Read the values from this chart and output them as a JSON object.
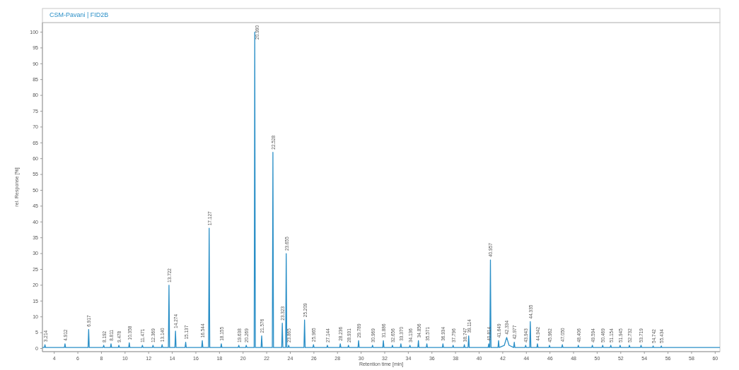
{
  "chart_data": {
    "type": "line",
    "title": "CSM-Pavani | FID2B",
    "xlabel": "Retention time [min]",
    "ylabel": "rel. Response [%]",
    "xlim": [
      3,
      60.4
    ],
    "xticks": [
      4,
      6,
      8,
      10,
      12,
      14,
      16,
      18,
      20,
      22,
      24,
      26,
      28,
      30,
      32,
      34,
      36,
      38,
      40,
      42,
      44,
      46,
      48,
      50,
      52,
      54,
      56,
      58,
      60
    ],
    "ylim": [
      -1,
      103
    ],
    "yticks": [
      0,
      5,
      10,
      15,
      20,
      25,
      30,
      35,
      40,
      45,
      50,
      55,
      60,
      65,
      70,
      75,
      80,
      85,
      90,
      95,
      100
    ],
    "series": [
      {
        "color": "#2a8fc7",
        "x": [
          3.0,
          3.164,
          3.214,
          3.264,
          4.862,
          4.912,
          4.962,
          6.867,
          6.917,
          6.967,
          8.142,
          8.192,
          8.242,
          8.761,
          8.811,
          8.861,
          9.428,
          9.478,
          9.528,
          10.308,
          10.358,
          10.408,
          11.421,
          11.471,
          11.521,
          12.319,
          12.369,
          12.419,
          13.09,
          13.14,
          13.19,
          13.672,
          13.722,
          13.772,
          14.224,
          14.274,
          14.324,
          15.087,
          15.137,
          15.187,
          16.494,
          16.544,
          16.594,
          17.077,
          17.127,
          17.177,
          18.105,
          18.155,
          18.205,
          19.588,
          19.638,
          19.688,
          20.219,
          20.269,
          20.319,
          20.94,
          20.99,
          21.04,
          21.526,
          21.576,
          21.626,
          22.478,
          22.528,
          22.578,
          23.273,
          23.323,
          23.373,
          23.605,
          23.655,
          23.705,
          23.815,
          23.865,
          23.915,
          25.159,
          25.209,
          25.259,
          25.915,
          25.965,
          26.015,
          27.094,
          27.144,
          27.194,
          28.186,
          28.236,
          28.286,
          28.881,
          28.931,
          28.981,
          29.739,
          29.789,
          29.839,
          30.919,
          30.969,
          31.019,
          31.836,
          31.886,
          31.936,
          32.606,
          32.656,
          32.706,
          33.32,
          33.37,
          33.42,
          34.086,
          34.136,
          34.186,
          34.806,
          34.856,
          34.906,
          35.521,
          35.571,
          35.621,
          36.884,
          36.934,
          36.984,
          37.746,
          37.796,
          37.846,
          38.697,
          38.747,
          38.797,
          39.064,
          39.114,
          39.164,
          40.764,
          40.814,
          40.864,
          40.907,
          40.957,
          41.007,
          41.599,
          41.649,
          41.699,
          42.134,
          42.334,
          42.534,
          42.927,
          42.977,
          43.027,
          43.893,
          43.943,
          43.993,
          44.285,
          44.335,
          44.385,
          44.892,
          44.942,
          44.992,
          45.912,
          45.962,
          46.012,
          47.0,
          47.05,
          47.1,
          48.356,
          48.406,
          48.456,
          49.544,
          49.594,
          49.644,
          50.419,
          50.469,
          50.519,
          51.104,
          51.154,
          51.204,
          51.895,
          51.945,
          51.995,
          52.682,
          52.732,
          52.782,
          53.669,
          53.719,
          53.769,
          54.692,
          54.742,
          54.792,
          55.384,
          55.434,
          55.484,
          60.4
        ],
        "values": [
          0.3,
          0.3,
          1.2,
          0.3,
          0.3,
          1.5,
          0.3,
          0.3,
          6,
          0.3,
          0.3,
          1,
          0.3,
          0.3,
          1.5,
          0.3,
          0.3,
          1,
          0.3,
          0.3,
          1.8,
          0.3,
          0.3,
          1,
          0.3,
          0.3,
          1,
          0.3,
          0.3,
          1.2,
          0.3,
          0.3,
          20,
          0.3,
          0.3,
          5.5,
          0.3,
          0.3,
          2,
          0.3,
          0.3,
          2.5,
          0.3,
          0.3,
          38,
          0.3,
          0.3,
          1.5,
          0.3,
          0.3,
          1,
          0.3,
          0.3,
          1,
          0.3,
          0.3,
          100,
          0.3,
          0.3,
          4,
          0.3,
          0.3,
          62,
          0.3,
          0.3,
          8,
          0.3,
          0.3,
          30,
          0.3,
          0.3,
          1,
          0.3,
          0.3,
          9,
          0.3,
          0.3,
          1.2,
          0.3,
          0.3,
          1,
          0.3,
          0.3,
          1.5,
          0.3,
          0.3,
          1,
          0.3,
          0.3,
          2.5,
          0.3,
          0.3,
          1,
          0.3,
          0.3,
          2.5,
          0.3,
          0.3,
          1,
          0.3,
          0.3,
          1.5,
          0.3,
          0.3,
          1,
          0.3,
          0.3,
          2.5,
          0.3,
          0.3,
          1.5,
          0.3,
          0.3,
          1.5,
          0.3,
          0.3,
          1,
          0.3,
          0.3,
          1.2,
          0.3,
          0.3,
          4,
          0.3,
          0.3,
          1.5,
          0.3,
          0.3,
          28,
          0.3,
          0.3,
          2.5,
          0.3,
          1,
          3.5,
          1,
          0.3,
          2,
          0.3,
          0.3,
          1,
          0.3,
          0.3,
          8.5,
          0.3,
          0.3,
          1.5,
          0.3,
          0.3,
          1,
          0.3,
          0.3,
          1.2,
          0.3,
          0.3,
          1,
          0.3,
          0.3,
          1,
          0.3,
          0.3,
          1,
          0.3,
          0.3,
          1,
          0.3,
          0.3,
          1,
          0.3,
          0.3,
          1,
          0.3,
          0.3,
          1,
          0.3,
          0.3,
          0.8,
          0.3,
          0.3,
          0.8,
          0.3,
          0.3
        ]
      }
    ],
    "annotations": [
      {
        "text": "3.214",
        "x": 3.214,
        "y": 1.2
      },
      {
        "text": "4.912",
        "x": 4.912,
        "y": 1.5
      },
      {
        "text": "6.917",
        "x": 6.917,
        "y": 6
      },
      {
        "text": "8.192",
        "x": 8.192,
        "y": 1
      },
      {
        "text": "8.811",
        "x": 8.811,
        "y": 1.5
      },
      {
        "text": "9.478",
        "x": 9.478,
        "y": 1
      },
      {
        "text": "10.358",
        "x": 10.358,
        "y": 1.8
      },
      {
        "text": "11.471",
        "x": 11.471,
        "y": 1
      },
      {
        "text": "12.369",
        "x": 12.369,
        "y": 1
      },
      {
        "text": "13.140",
        "x": 13.14,
        "y": 1.2
      },
      {
        "text": "13.722",
        "x": 13.722,
        "y": 20
      },
      {
        "text": "14.274",
        "x": 14.274,
        "y": 5.5
      },
      {
        "text": "15.137",
        "x": 15.137,
        "y": 2
      },
      {
        "text": "16.544",
        "x": 16.544,
        "y": 2.5
      },
      {
        "text": "17.127",
        "x": 17.127,
        "y": 38
      },
      {
        "text": "18.155",
        "x": 18.155,
        "y": 1.5
      },
      {
        "text": "19.638",
        "x": 19.638,
        "y": 1
      },
      {
        "text": "20.269",
        "x": 20.269,
        "y": 1
      },
      {
        "text": "20.990",
        "x": 20.99,
        "y": 100
      },
      {
        "text": "21.576",
        "x": 21.576,
        "y": 4
      },
      {
        "text": "22.528",
        "x": 22.528,
        "y": 62
      },
      {
        "text": "23.323",
        "x": 23.323,
        "y": 8
      },
      {
        "text": "23.655",
        "x": 23.655,
        "y": 30
      },
      {
        "text": "23.865",
        "x": 23.865,
        "y": 1
      },
      {
        "text": "25.209",
        "x": 25.209,
        "y": 9
      },
      {
        "text": "25.965",
        "x": 25.965,
        "y": 1.2
      },
      {
        "text": "27.144",
        "x": 27.144,
        "y": 1
      },
      {
        "text": "28.236",
        "x": 28.236,
        "y": 1.5
      },
      {
        "text": "28.931",
        "x": 28.931,
        "y": 1
      },
      {
        "text": "29.789",
        "x": 29.789,
        "y": 2.5
      },
      {
        "text": "30.969",
        "x": 30.969,
        "y": 1
      },
      {
        "text": "31.886",
        "x": 31.886,
        "y": 2.5
      },
      {
        "text": "32.656",
        "x": 32.656,
        "y": 1
      },
      {
        "text": "33.370",
        "x": 33.37,
        "y": 1.5
      },
      {
        "text": "34.136",
        "x": 34.136,
        "y": 1
      },
      {
        "text": "34.856",
        "x": 34.856,
        "y": 2.5
      },
      {
        "text": "35.571",
        "x": 35.571,
        "y": 1.5
      },
      {
        "text": "36.934",
        "x": 36.934,
        "y": 1.5
      },
      {
        "text": "37.796",
        "x": 37.796,
        "y": 1
      },
      {
        "text": "38.747",
        "x": 38.747,
        "y": 1.2
      },
      {
        "text": "39.114",
        "x": 39.114,
        "y": 4
      },
      {
        "text": "40.814",
        "x": 40.814,
        "y": 1.5
      },
      {
        "text": "40.957",
        "x": 40.957,
        "y": 28
      },
      {
        "text": "41.649",
        "x": 41.649,
        "y": 2.5
      },
      {
        "text": "42.334",
        "x": 42.334,
        "y": 3.5
      },
      {
        "text": "42.977",
        "x": 42.977,
        "y": 2
      },
      {
        "text": "43.943",
        "x": 43.943,
        "y": 1
      },
      {
        "text": "44.335",
        "x": 44.335,
        "y": 8.5
      },
      {
        "text": "44.942",
        "x": 44.942,
        "y": 1.5
      },
      {
        "text": "45.962",
        "x": 45.962,
        "y": 1
      },
      {
        "text": "47.050",
        "x": 47.05,
        "y": 1.2
      },
      {
        "text": "48.406",
        "x": 48.406,
        "y": 1
      },
      {
        "text": "49.594",
        "x": 49.594,
        "y": 1
      },
      {
        "text": "50.469",
        "x": 50.469,
        "y": 1
      },
      {
        "text": "51.154",
        "x": 51.154,
        "y": 1
      },
      {
        "text": "51.945",
        "x": 51.945,
        "y": 1
      },
      {
        "text": "52.732",
        "x": 52.732,
        "y": 1
      },
      {
        "text": "53.719",
        "x": 53.719,
        "y": 1
      },
      {
        "text": "54.742",
        "x": 54.742,
        "y": 0.8
      },
      {
        "text": "55.434",
        "x": 55.434,
        "y": 0.8
      }
    ]
  }
}
